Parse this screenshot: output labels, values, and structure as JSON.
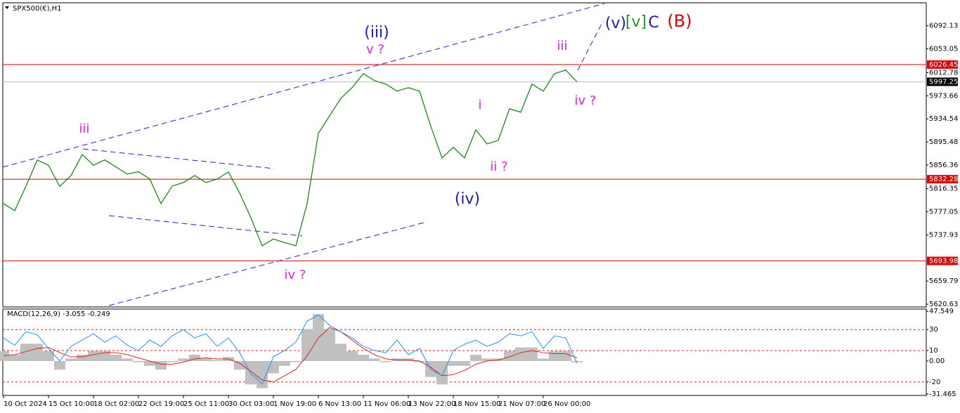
{
  "chart_data": [
    {
      "type": "line",
      "title": "SPX500(€),H1",
      "categories": [
        "10 Oct 2024",
        null,
        null,
        null,
        "15 Oct 10:00",
        null,
        null,
        null,
        "18 Oct 02:00",
        null,
        null,
        null,
        "22 Oct 19:00",
        null,
        null,
        null,
        "25 Oct 11:00",
        null,
        null,
        null,
        "30 Oct 03:00",
        null,
        null,
        null,
        "1 Nov 19:00",
        null,
        null,
        null,
        "6 Nov 13:00",
        null,
        null,
        null,
        "11 Nov 06:00",
        null,
        null,
        null,
        "13 Nov 22:00",
        null,
        null,
        null,
        "18 Nov 15:00",
        null,
        null,
        null,
        "21 Nov 07:00",
        null,
        null,
        null,
        "26 Nov 00:00",
        null,
        null,
        null
      ],
      "series": [
        {
          "color": "#1a8a1a",
          "values": [
            5790.9,
            5779.0,
            5820.7,
            5864.7,
            5856.0,
            5820.0,
            5838.5,
            5874.0,
            5856.0,
            5865.0,
            5853.0,
            5841.0,
            5845.0,
            5833.0,
            5791.0,
            5820.7,
            5826.6,
            5838.5,
            5826.6,
            5832.6,
            5844.5,
            5808.8,
            5767.0,
            5719.5,
            5731.0,
            5725.0,
            5719.5,
            5790.9,
            5909.9,
            5939.7,
            5969.4,
            5987.3,
            6011.1,
            5999.2,
            5993.3,
            5981.4,
            5987.3,
            5981.4,
            5921.9,
            5868.3,
            5886.2,
            5868.3,
            5915.9,
            5892.1,
            5898.1,
            5951.6,
            5945.7,
            5993.3,
            5981.4,
            6011.1,
            6017.1,
            5997.3
          ]
        }
      ],
      "ylim": [
        5616,
        6131
      ],
      "yticks": [
        6092.13,
        6053.05,
        6012.78,
        5973.66,
        5934.54,
        5895.48,
        5856.36,
        5816.35,
        5777.05,
        5737.93,
        5659.79,
        5620.63
      ],
      "levels": [
        {
          "value": 6026.45,
          "color": "#e00000",
          "label_bg": "#e00000"
        },
        {
          "value": 5997.25,
          "color": "#c0c0c0",
          "label_bg": "#000000"
        },
        {
          "value": 5832.28,
          "color": "#e00000",
          "label_bg": "#e00000"
        },
        {
          "value": 5693.98,
          "color": "#e00000",
          "label_bg": "#e00000"
        }
      ],
      "annotations": [
        {
          "text": "(iii)",
          "color": "#1a1acc"
        },
        {
          "text": "v ?",
          "color": "#e020e0"
        },
        {
          "text": "iii",
          "color": "#e020e0"
        },
        {
          "text": "iv ?",
          "color": "#e020e0"
        },
        {
          "text": "(iv)",
          "color": "#1a1acc"
        },
        {
          "text": "i",
          "color": "#e020e0"
        },
        {
          "text": "ii ?",
          "color": "#e020e0"
        },
        {
          "text": "iii",
          "color": "#e020e0"
        },
        {
          "text": "iv ?",
          "color": "#e020e0"
        },
        {
          "text": "(v)",
          "color": "#1a1acc"
        },
        {
          "text": "[v]",
          "color": "#1a9a1a"
        },
        {
          "text": "C",
          "color": "#1a1acc"
        },
        {
          "text": "(B)",
          "color": "#e00000"
        }
      ]
    },
    {
      "type": "macd",
      "title": "MACD(12,26,9) -3.055 -0.249",
      "series": [
        {
          "color": "#c0c0c0",
          "values": [
            9.5,
            6.0,
            16.5,
            16.5,
            9.5,
            -8.2,
            2.4,
            6.0,
            9.5,
            9.5,
            6.0,
            2.4,
            -1.1,
            -4.6,
            -8.2,
            -1.1,
            2.4,
            6.0,
            2.4,
            1.0,
            3.8,
            -8.2,
            -22.3,
            -25.9,
            -11.7,
            -4.6,
            -1.1,
            30.6,
            44.7,
            30.6,
            16.5,
            9.5,
            6.0,
            2.4,
            -1.1,
            2.4,
            2.4,
            -1.1,
            -15.2,
            -22.3,
            -4.6,
            -4.6,
            6.0,
            2.4,
            2.4,
            9.5,
            13.0,
            13.0,
            2.4,
            9.5,
            9.5,
            -1.1
          ]
        },
        {
          "color": "#e02020",
          "values": [
            5,
            6,
            9,
            12,
            13,
            8,
            4,
            4,
            6,
            8,
            8,
            6,
            3,
            0,
            -3,
            -3,
            -1,
            2,
            3,
            2,
            2,
            -2,
            -10,
            -18,
            -20,
            -14,
            -8,
            5,
            22,
            32,
            28,
            20,
            12,
            6,
            2,
            1,
            1,
            0,
            -6,
            -14,
            -13,
            -9,
            -3,
            0,
            1,
            4,
            8,
            10,
            8,
            7,
            7,
            3
          ]
        },
        {
          "color": "#1e90ff",
          "values": [
            22,
            15,
            28,
            25,
            12,
            0,
            14,
            20,
            26,
            18,
            24,
            15,
            10,
            20,
            14,
            24,
            30,
            22,
            26,
            14,
            22,
            8,
            -12,
            -22,
            4,
            10,
            18,
            38,
            44,
            34,
            28,
            22,
            14,
            10,
            8,
            20,
            6,
            12,
            -8,
            -14,
            10,
            16,
            20,
            14,
            18,
            26,
            24,
            28,
            12,
            24,
            22,
            -2
          ]
        }
      ],
      "ylim": [
        -31.465,
        47.549
      ],
      "yticks": [
        47.549,
        30,
        10,
        {
          "value": 0,
          "label": "0.00"
        },
        -20,
        -31.465
      ],
      "grid_color": "#e02020"
    }
  ]
}
